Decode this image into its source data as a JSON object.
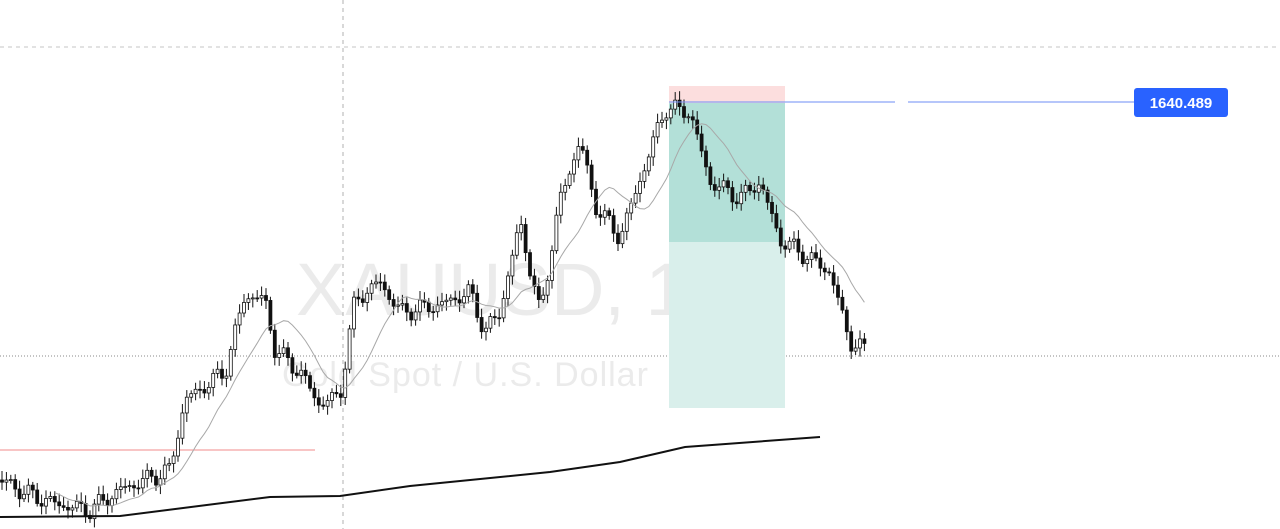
{
  "watermark": {
    "symbol": "XAUUSD, 1",
    "description": "Gold Spot / U.S. Dollar"
  },
  "price_label": "1640.489"
}
